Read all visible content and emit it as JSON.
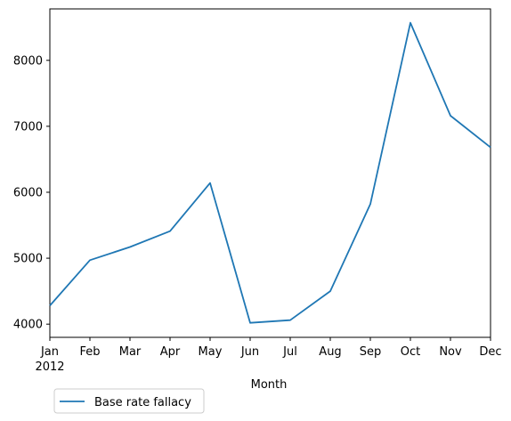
{
  "chart_data": {
    "type": "line",
    "title": "",
    "xlabel": "Month",
    "ylabel": "",
    "x_categories": [
      "Jan",
      "Feb",
      "Mar",
      "Apr",
      "May",
      "Jun",
      "Jul",
      "Aug",
      "Sep",
      "Oct",
      "Nov",
      "Dec"
    ],
    "x_year_label": "2012",
    "y_ticks": [
      4000,
      5000,
      6000,
      7000,
      8000
    ],
    "ylim": [
      3800,
      8780
    ],
    "series": [
      {
        "name": "Base rate fallacy",
        "color": "#1f77b4",
        "values": [
          4280,
          4970,
          5170,
          5410,
          6140,
          4020,
          4060,
          4500,
          5820,
          8570,
          7160,
          6680
        ]
      }
    ],
    "legend": {
      "placement": "below-left"
    },
    "grid": false
  }
}
